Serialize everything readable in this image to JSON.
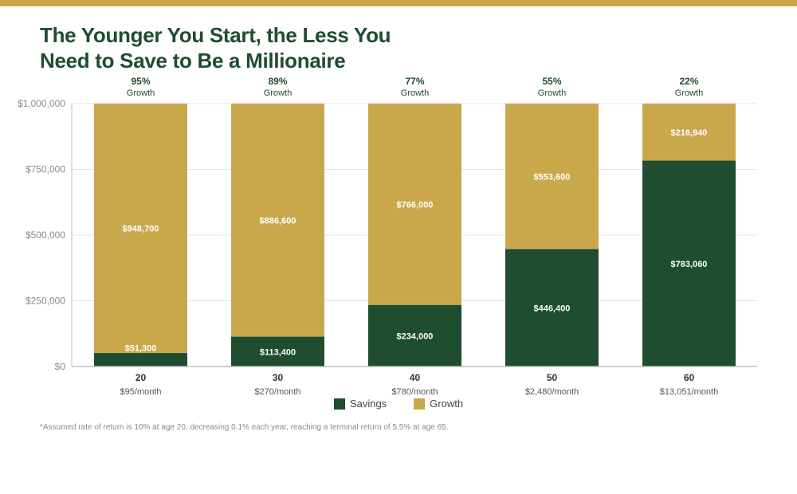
{
  "title_lines": [
    "The Younger You Start, the Less You",
    "Need to Save to Be a Millionaire"
  ],
  "colors": {
    "savings": "#1e4d2f",
    "growth": "#c9a84c",
    "title": "#1e4d2f",
    "top_bar": "#c9a84c"
  },
  "legend": {
    "savings": "Savings",
    "growth": "Growth"
  },
  "footnote": "*Assumed rate of return is 10% at age 20, decreasing 0.1% each year, reaching a terminal return of 5.5% at age 65.",
  "chart_data": {
    "type": "bar",
    "stacked": true,
    "title": "The Younger You Start, the Less You Need to Save to Be a Millionaire",
    "categories": [
      "20",
      "30",
      "40",
      "50",
      "60"
    ],
    "category_sublabels": [
      "$95/month",
      "$270/month",
      "$780/month",
      "$2,480/month",
      "$13,051/month"
    ],
    "series": [
      {
        "name": "Savings",
        "values": [
          51300,
          113400,
          234000,
          446400,
          783060
        ],
        "labels": [
          "$51,300",
          "$113,400",
          "$234,000",
          "$446,400",
          "$783,060"
        ]
      },
      {
        "name": "Growth",
        "values": [
          948700,
          886600,
          766000,
          553600,
          216940
        ],
        "labels": [
          "$948,700",
          "$886,600",
          "$766,000",
          "$553,600",
          "$216,940"
        ]
      }
    ],
    "growth_percent_labels": [
      "95%",
      "89%",
      "77%",
      "55%",
      "22%"
    ],
    "growth_percent_caption": "Growth",
    "ylim": [
      0,
      1000000
    ],
    "yticks": [
      0,
      250000,
      500000,
      750000,
      1000000
    ],
    "ytick_labels": [
      "$0",
      "$250,000",
      "$500,000",
      "$750,000",
      "$1,000,000"
    ],
    "grid": true,
    "legend_position": "bottom-center"
  }
}
